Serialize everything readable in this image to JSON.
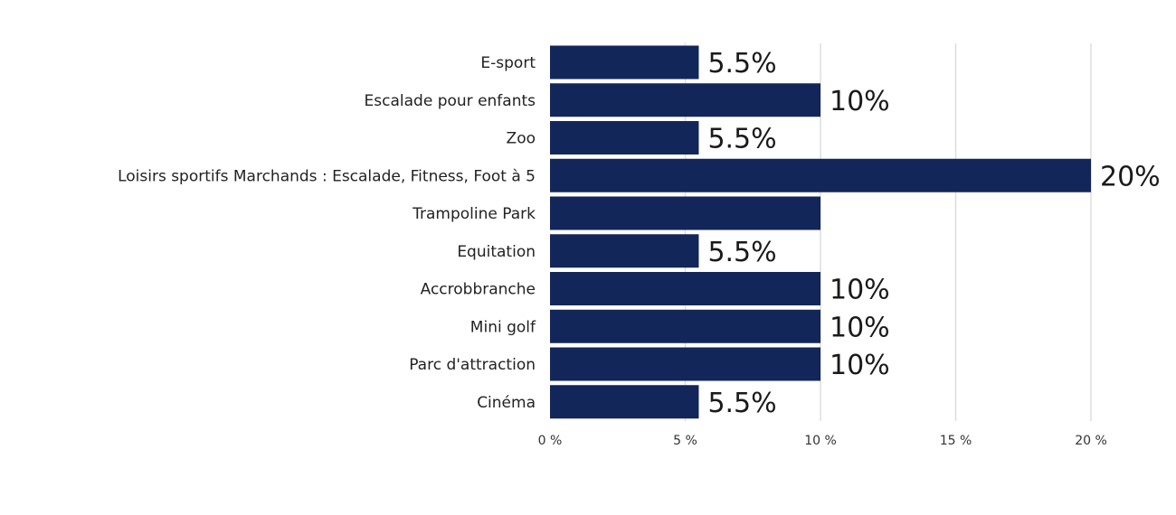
{
  "chart_data": {
    "type": "bar",
    "orientation": "horizontal",
    "title": "",
    "xlabel": "",
    "ylabel": "",
    "categories": [
      "E-sport",
      "Escalade pour enfants",
      "Zoo",
      "Loisirs sportifs Marchands : Escalade, Fitness, Foot à 5",
      "Trampoline Park",
      "Equitation",
      "Accrobbranche",
      "Mini golf",
      "Parc d'attraction",
      "Cinéma"
    ],
    "values": [
      5.5,
      10,
      5.5,
      20,
      10,
      5.5,
      10,
      10,
      10,
      5.5
    ],
    "data_labels": [
      "5.5%",
      "10%",
      "5.5%",
      "20%",
      "",
      "5.5%",
      "10%",
      "10%",
      "10%",
      "5.5%"
    ],
    "xlim": [
      0,
      20
    ],
    "xticks": [
      0,
      5,
      10,
      15,
      20
    ],
    "xtick_labels": [
      "0 %",
      "5 %",
      "10 %",
      "15 %",
      "20 %"
    ],
    "grid": true,
    "legend": "none",
    "bar_color": "#13265a",
    "grid_color": "#dedede"
  }
}
